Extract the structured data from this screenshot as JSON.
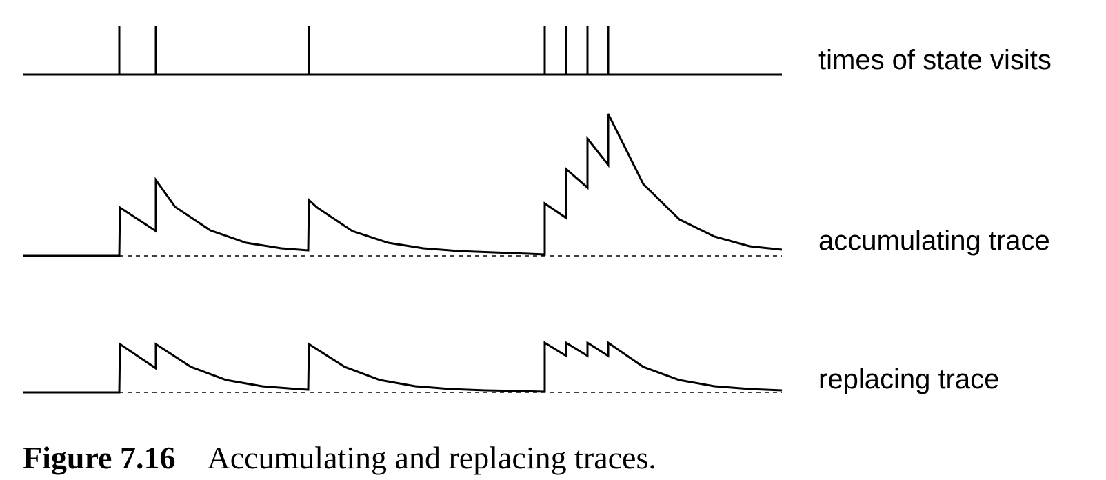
{
  "labels": {
    "visits": "times of state visits",
    "accumulating": "accumulating trace",
    "replacing": "replacing trace"
  },
  "caption": {
    "number": "Figure 7.16",
    "text": "Accumulating and replacing traces."
  },
  "colors": {
    "ink": "#000000",
    "background": "#ffffff"
  }
}
